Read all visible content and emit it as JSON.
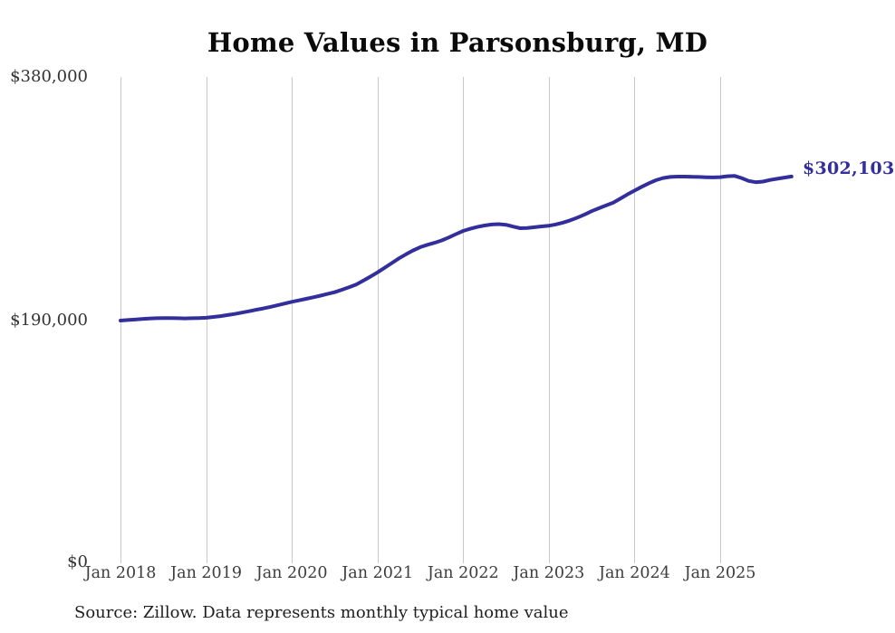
{
  "chart": {
    "title": "Home Values in Parsonsburg, MD",
    "end_label": "$302,103",
    "source": "Source: Zillow. Data represents monthly typical home value",
    "line_color": "#322e9b",
    "grid_color": "#c9c9c9"
  },
  "chart_data": {
    "type": "line",
    "title": "Home Values in Parsonsburg, MD",
    "series_name": "Typical home value",
    "frequency": "monthly",
    "x_start": "Jan 2018",
    "x_end": "Nov 2025",
    "x_tick_labels": [
      "Jan 2018",
      "Jan 2019",
      "Jan 2020",
      "Jan 2021",
      "Jan 2022",
      "Jan 2023",
      "Jan 2024",
      "Jan 2025"
    ],
    "y_ticks": [
      {
        "label": "$380,000",
        "value": 380000
      },
      {
        "label": "$190,000",
        "value": 190000
      },
      {
        "label": "$0",
        "value": 0
      }
    ],
    "ylim": [
      0,
      380000
    ],
    "grid": "vertical-only",
    "legend": "none",
    "annotation": {
      "text": "$302,103",
      "meaning": "latest monthly typical home value"
    },
    "latest_value": 302103,
    "values": [
      189300,
      189700,
      190100,
      190500,
      190900,
      191100,
      191300,
      191200,
      191100,
      191000,
      191100,
      191300,
      191500,
      192100,
      192800,
      193600,
      194500,
      195500,
      196600,
      197700,
      198800,
      200000,
      201300,
      202600,
      204000,
      205100,
      206300,
      207500,
      208800,
      210100,
      211500,
      213400,
      215400,
      217500,
      220500,
      223700,
      227000,
      230600,
      234300,
      238000,
      241200,
      244200,
      246800,
      248600,
      250200,
      252000,
      254400,
      257000,
      259500,
      261200,
      262600,
      263700,
      264500,
      264800,
      264300,
      262900,
      261600,
      261800,
      262400,
      263000,
      263500,
      264600,
      266000,
      267800,
      269900,
      272300,
      274900,
      277200,
      279400,
      281500,
      284700,
      288000,
      291000,
      294000,
      296800,
      299200,
      300900,
      301700,
      302000,
      302000,
      301900,
      301700,
      301500,
      301400,
      301600,
      302300,
      302600,
      300900,
      298600,
      297600,
      298100,
      299400,
      300300,
      301200,
      302103
    ]
  }
}
